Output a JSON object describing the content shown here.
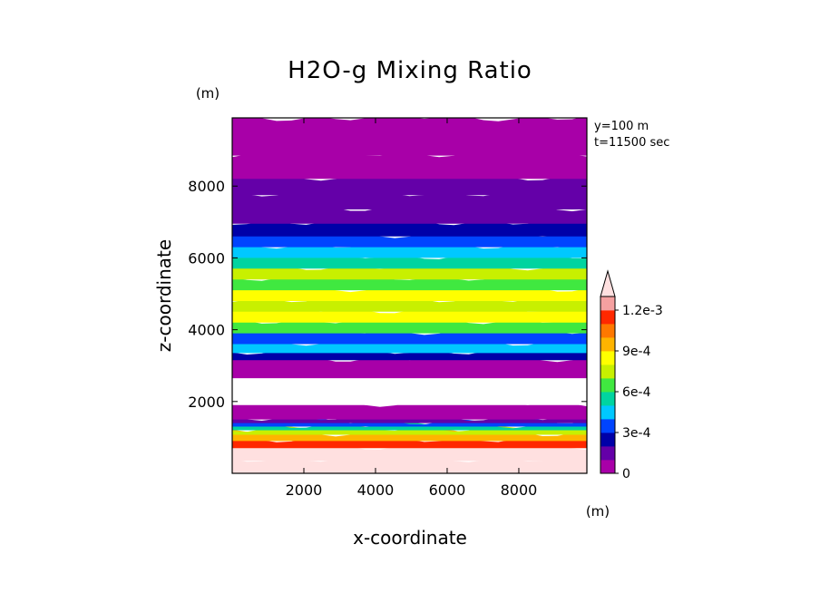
{
  "chart_data": {
    "type": "heatmap",
    "title": "H2O-g Mixing Ratio",
    "xlabel": "x-coordinate",
    "ylabel": "z-coordinate",
    "x_unit": "(m)",
    "y_unit": "(m)",
    "annotations": [
      "y=100 m",
      "t=11500 sec"
    ],
    "xlim": [
      0,
      9900
    ],
    "ylim": [
      0,
      9900
    ],
    "x_ticks": [
      "2000",
      "4000",
      "6000",
      "8000"
    ],
    "y_ticks": [
      "2000",
      "4000",
      "6000",
      "8000"
    ],
    "colorbar": {
      "tick_labels": [
        "1.2e-3",
        "9e-4",
        "6e-4",
        "3e-4",
        "0"
      ],
      "levels": [
        0,
        0.0001,
        0.0002,
        0.0003,
        0.0004,
        0.0005,
        0.0006,
        0.0007,
        0.0008,
        0.0009,
        0.001,
        0.0011,
        0.0012
      ],
      "colors": [
        "#a800a8",
        "#6400a8",
        "#0000a8",
        "#0044ff",
        "#00c8ff",
        "#00d4a0",
        "#40e840",
        "#c8f000",
        "#ffff00",
        "#ffb400",
        "#ff7800",
        "#ff2800",
        "#f5a0a0"
      ],
      "extend_color": "#ffe0e0"
    },
    "z_profile": [
      {
        "z": 150,
        "value": 0.00125
      },
      {
        "z": 650,
        "value": 0.00125
      },
      {
        "z": 850,
        "value": 0.00115
      },
      {
        "z": 1050,
        "value": 0.00095
      },
      {
        "z": 1200,
        "value": 0.00075
      },
      {
        "z": 1300,
        "value": 0.00055
      },
      {
        "z": 1400,
        "value": 0.00035
      },
      {
        "z": 1500,
        "value": 0.00015
      },
      {
        "z": 1600,
        "value": 5e-05
      },
      {
        "z": 2300,
        "value": null
      },
      {
        "z": 3100,
        "value": 5e-05
      },
      {
        "z": 3300,
        "value": 0.00025
      },
      {
        "z": 3500,
        "value": 0.00045
      },
      {
        "z": 3800,
        "value": 0.00035
      },
      {
        "z": 4100,
        "value": 0.00065
      },
      {
        "z": 4400,
        "value": 0.00085
      },
      {
        "z": 4700,
        "value": 0.00075
      },
      {
        "z": 5000,
        "value": 0.00085
      },
      {
        "z": 5300,
        "value": 0.00065
      },
      {
        "z": 5600,
        "value": 0.00075
      },
      {
        "z": 5900,
        "value": 0.00055
      },
      {
        "z": 6200,
        "value": 0.00045
      },
      {
        "z": 6500,
        "value": 0.00035
      },
      {
        "z": 6800,
        "value": 0.00025
      },
      {
        "z": 7200,
        "value": 0.00015
      },
      {
        "z": 7600,
        "value": 0.00015
      },
      {
        "z": 8000,
        "value": 0.00015
      },
      {
        "z": 8500,
        "value": 5e-05
      },
      {
        "z": 9300,
        "value": 2e-05
      }
    ]
  }
}
